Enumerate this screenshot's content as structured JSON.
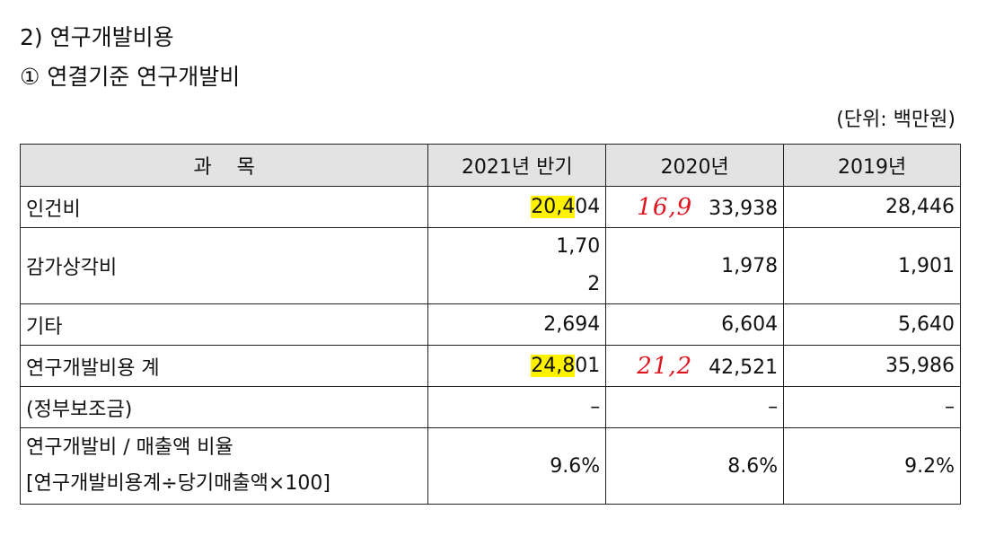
{
  "heading": "2) 연구개발비용",
  "subheading": "① 연결기준 연구개발비",
  "unit": "(단위: 백만원)",
  "table": {
    "headers": [
      "과    목",
      "2021년 반기",
      "2020년",
      "2019년"
    ],
    "rows": [
      {
        "label": "인건비",
        "h2021_pre": "20,4",
        "h2021_post": "04",
        "annotation2020": "16,9",
        "y2020": "33,938",
        "y2019": "28,446"
      },
      {
        "label": "감가상각비",
        "h2021_a": "1,70",
        "h2021_b": "2",
        "y2020": "1,978",
        "y2019": "1,901"
      },
      {
        "label": "기타",
        "h2021": "2,694",
        "y2020": "6,604",
        "y2019": "5,640"
      },
      {
        "label": "연구개발비용 계",
        "h2021_pre": "24,8",
        "h2021_post": "01",
        "annotation2020": "21,2",
        "y2020": "42,521",
        "y2019": "35,986"
      },
      {
        "label": "(정부보조금)",
        "h2021": "–",
        "y2020": "–",
        "y2019": "–"
      },
      {
        "label_line1": "연구개발비 / 매출액 비율",
        "label_line2": "[연구개발비용계÷당기매출액×100]",
        "h2021": "9.6%",
        "y2020": "8.6%",
        "y2019": "9.2%"
      }
    ]
  }
}
